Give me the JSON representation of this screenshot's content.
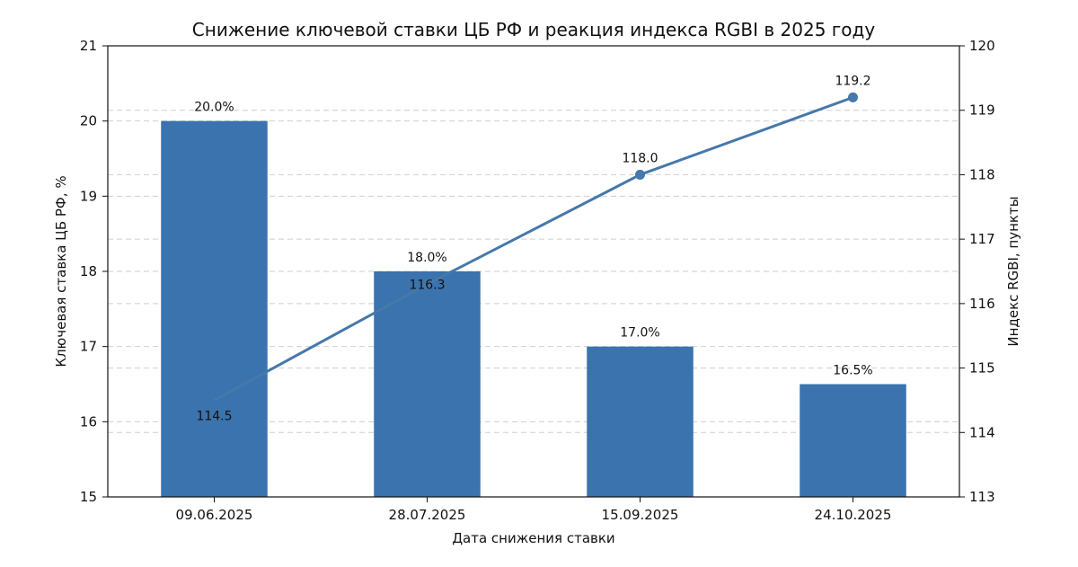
{
  "chart_data": {
    "type": "bar",
    "title": "Снижение ключевой ставки ЦБ РФ и реакция индекса RGBI в 2025 году",
    "xlabel": "Дата снижения ставки",
    "ylabel": "Ключевая ставка ЦБ РФ, %",
    "y2label": "Индекс RGBI, пункты",
    "categories": [
      "09.06.2025",
      "28.07.2025",
      "15.09.2025",
      "24.10.2025"
    ],
    "ylim": [
      15,
      21
    ],
    "yticks": [
      15,
      16,
      17,
      18,
      19,
      20,
      21
    ],
    "y2lim": [
      113,
      120
    ],
    "y2ticks": [
      113,
      114,
      115,
      116,
      117,
      118,
      119,
      120
    ],
    "grid": "horizontal-dashed",
    "series": [
      {
        "type": "bar",
        "axis": "left",
        "color": "#3a73ad",
        "values": [
          20.0,
          18.0,
          17.0,
          16.5
        ],
        "labels": [
          "20.0%",
          "18.0%",
          "17.0%",
          "16.5%"
        ]
      },
      {
        "type": "line",
        "axis": "right",
        "color": "#4678aa",
        "values": [
          114.5,
          116.3,
          118.0,
          119.2
        ],
        "labels": [
          "114.5",
          "116.3",
          "118.0",
          "119.2"
        ]
      }
    ]
  }
}
